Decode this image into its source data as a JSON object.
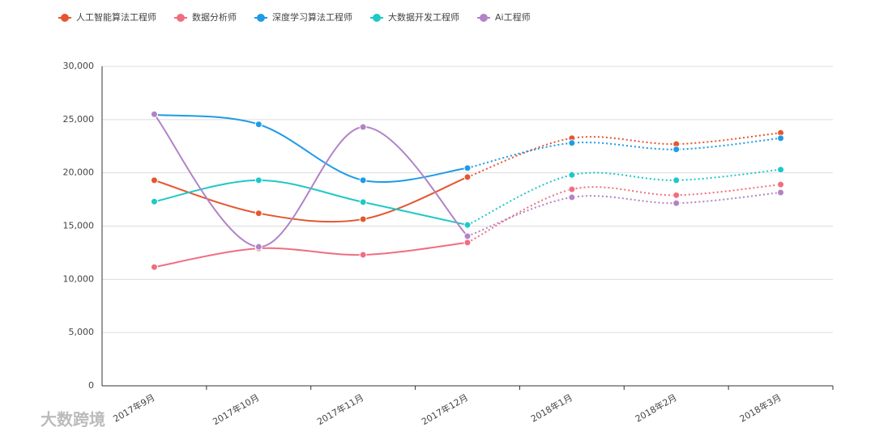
{
  "chart_data": {
    "type": "line",
    "categories": [
      "2017年9月",
      "2017年10月",
      "2017年11月",
      "2017年12月",
      "2018年1月",
      "2018年2月",
      "2018年3月"
    ],
    "series": [
      {
        "name": "人工智能算法工程师",
        "color": "#e5562f",
        "values": [
          19300,
          16200,
          15650,
          19600,
          23250,
          22700,
          23750
        ]
      },
      {
        "name": "数据分析师",
        "color": "#ef6e82",
        "values": [
          11150,
          12900,
          12300,
          13450,
          18450,
          17900,
          18900
        ]
      },
      {
        "name": "深度学习算法工程师",
        "color": "#1e9be8",
        "values": [
          25450,
          24550,
          19300,
          20450,
          22800,
          22200,
          23250
        ]
      },
      {
        "name": "大数据开发工程师",
        "color": "#1ec8c8",
        "values": [
          17300,
          19300,
          17250,
          15100,
          19800,
          19300,
          20300
        ]
      },
      {
        "name": "Ai工程师",
        "color": "#b283c6",
        "values": [
          25500,
          13050,
          24300,
          14050,
          17700,
          17150,
          18150
        ]
      }
    ],
    "dashed_from_index": 3,
    "ylim": [
      0,
      30000
    ],
    "yticks": [
      0,
      {
        "value": 5000,
        "label": "5,000"
      },
      {
        "value": 10000,
        "label": "10,000"
      },
      {
        "value": 15000,
        "label": "15,000"
      },
      {
        "value": 20000,
        "label": "20,000"
      },
      {
        "value": 25000,
        "label": "25,000"
      },
      {
        "value": 30000,
        "label": "30,000"
      }
    ],
    "grid": true,
    "legend": "top-left",
    "source": "大数跨境"
  }
}
